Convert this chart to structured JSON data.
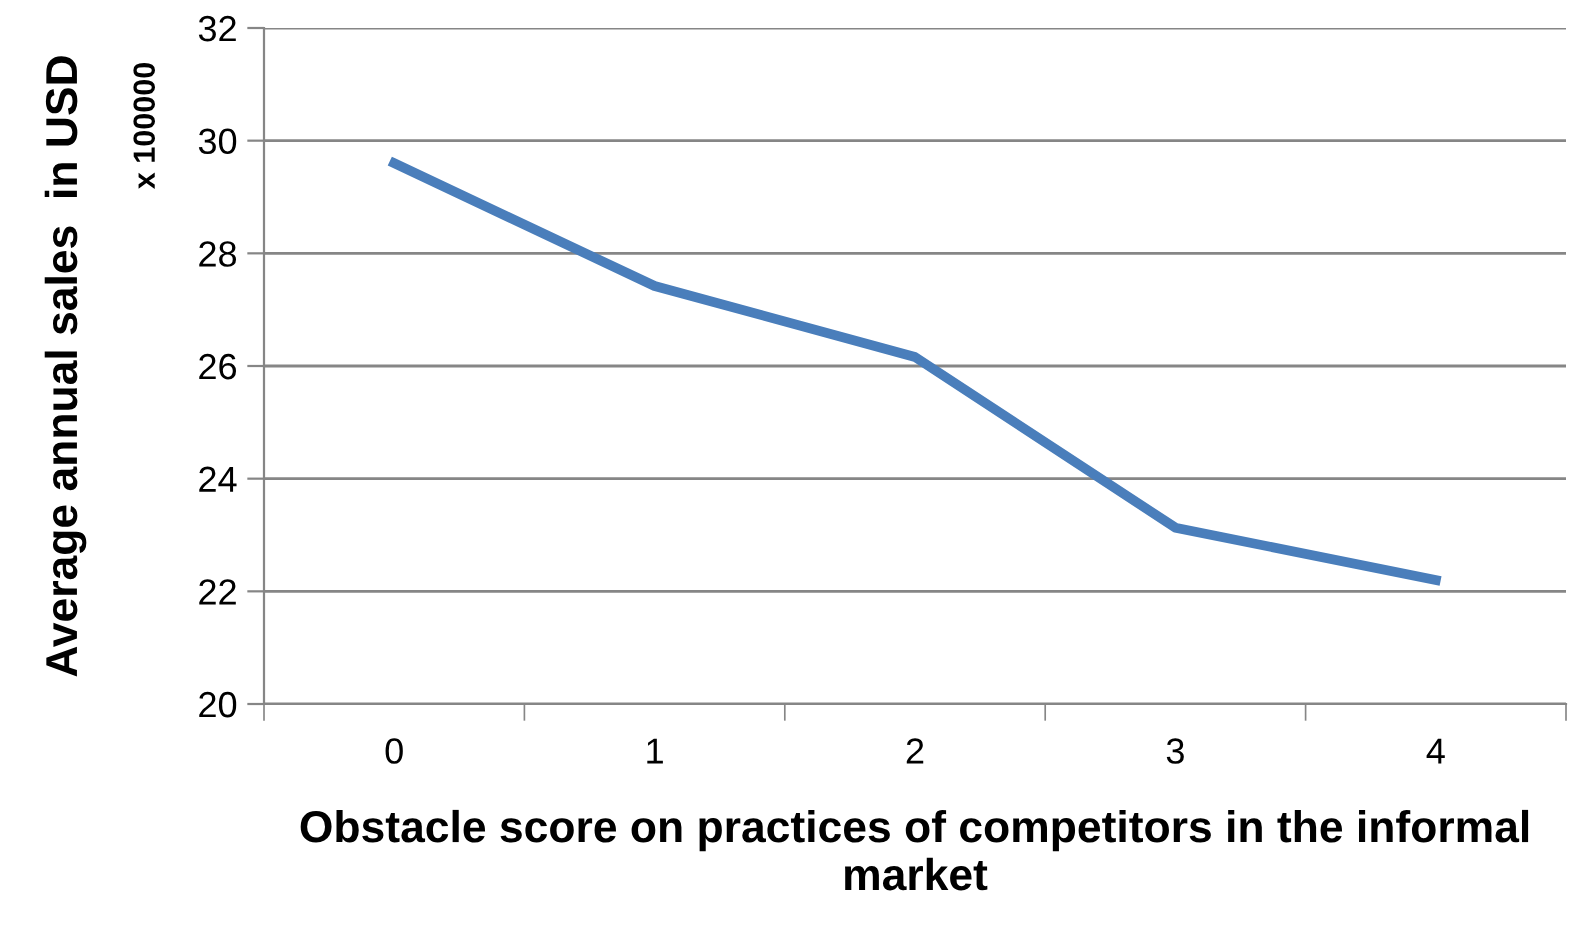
{
  "chart_data": {
    "type": "line",
    "categories": [
      "0",
      "1",
      "2",
      "3",
      "4"
    ],
    "series": [
      {
        "color": "#4a7ebb",
        "values": [
          29.6,
          27.42,
          26.16,
          23.13,
          22.2
        ]
      }
    ],
    "xlabel": "Obstacle score on practices of competitors in the informal market",
    "ylabel": "Average annual sales  in USD",
    "annotations": [
      "x 100000"
    ],
    "ylim": [
      20,
      32
    ],
    "yticks": [
      20,
      22,
      24,
      26,
      28,
      30,
      32
    ],
    "grid": "y",
    "legend": false,
    "marker": "none",
    "line_style": "solid"
  }
}
